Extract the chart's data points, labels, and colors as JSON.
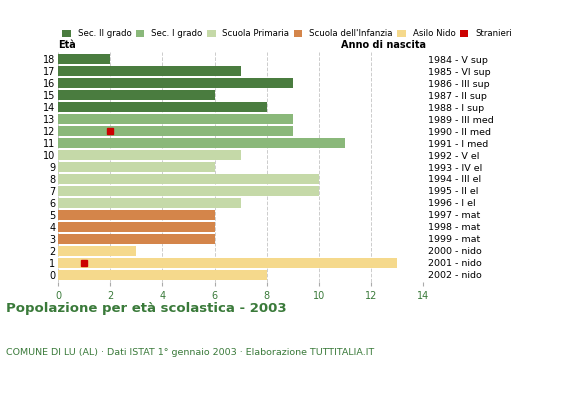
{
  "ages": [
    18,
    17,
    16,
    15,
    14,
    13,
    12,
    11,
    10,
    9,
    8,
    7,
    6,
    5,
    4,
    3,
    2,
    1,
    0
  ],
  "years": [
    "1984 - V sup",
    "1985 - VI sup",
    "1986 - III sup",
    "1987 - II sup",
    "1988 - I sup",
    "1989 - III med",
    "1990 - II med",
    "1991 - I med",
    "1992 - V el",
    "1993 - IV el",
    "1994 - III el",
    "1995 - II el",
    "1996 - I el",
    "1997 - mat",
    "1998 - mat",
    "1999 - mat",
    "2000 - nido",
    "2001 - nido",
    "2002 - nido"
  ],
  "values": [
    2,
    7,
    9,
    6,
    8,
    9,
    9,
    11,
    7,
    6,
    10,
    10,
    7,
    6,
    6,
    6,
    3,
    13,
    8
  ],
  "bar_colors": [
    "#4a7c3f",
    "#4a7c3f",
    "#4a7c3f",
    "#4a7c3f",
    "#4a7c3f",
    "#8ab87a",
    "#8ab87a",
    "#8ab87a",
    "#c5d9a8",
    "#c5d9a8",
    "#c5d9a8",
    "#c5d9a8",
    "#c5d9a8",
    "#d4854a",
    "#d4854a",
    "#d4854a",
    "#f5d98c",
    "#f5d98c",
    "#f5d98c"
  ],
  "stranieri_ages": [
    12,
    1
  ],
  "stranieri_values": [
    2,
    1
  ],
  "legend_labels": [
    "Sec. II grado",
    "Sec. I grado",
    "Scuola Primaria",
    "Scuola dell'Infanzia",
    "Asilo Nido",
    "Stranieri"
  ],
  "legend_colors": [
    "#4a7c3f",
    "#8ab87a",
    "#c5d9a8",
    "#d4854a",
    "#f5d98c",
    "#cc0000"
  ],
  "title": "Popolazione per età scolastica - 2003",
  "subtitle": "COMUNE DI LU (AL) · Dati ISTAT 1° gennaio 2003 · Elaborazione TUTTITALIA.IT",
  "label_eta": "Età",
  "label_anno": "Anno di nascita",
  "text_color_green": "#3a7a3a",
  "xlim": [
    0,
    14
  ],
  "xticks": [
    0,
    2,
    4,
    6,
    8,
    10,
    12,
    14
  ],
  "background_color": "#ffffff",
  "grid_color": "#cccccc"
}
